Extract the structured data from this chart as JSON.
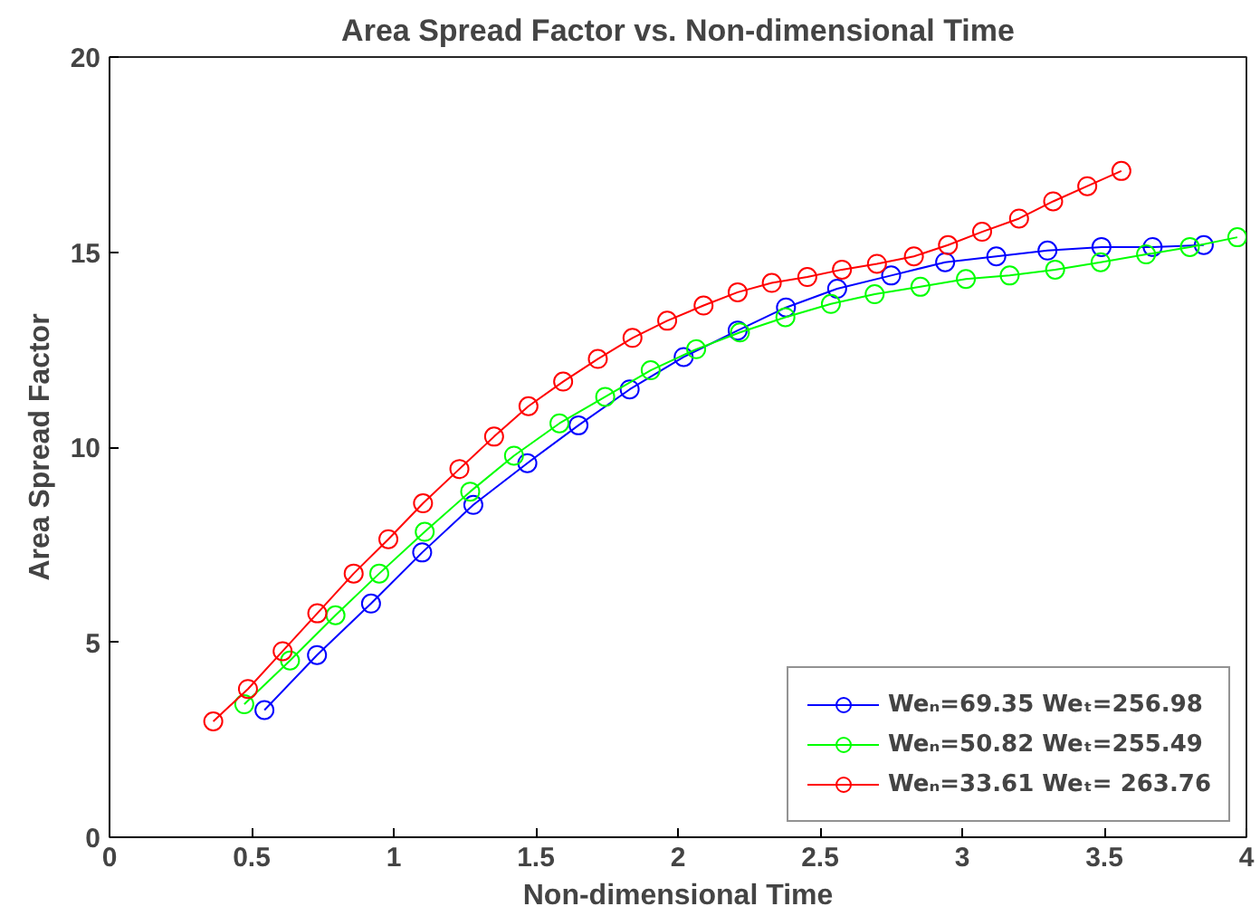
{
  "chart_data": {
    "type": "line",
    "title": "Area Spread Factor vs. Non-dimensional Time",
    "xlabel": "Non-dimensional Time",
    "ylabel": "Area Spread Factor",
    "xlim": [
      0,
      4
    ],
    "ylim": [
      0,
      20
    ],
    "xticks": [
      0,
      0.5,
      1,
      1.5,
      2,
      2.5,
      3,
      3.5,
      4
    ],
    "yticks": [
      0,
      5,
      10,
      15,
      20
    ],
    "grid": false,
    "legend": "bottom right",
    "marker": "circle",
    "line_style": "solid",
    "series": [
      {
        "name": "Weₙ=69.35 Weₜ=256.98",
        "color": "#0000ff",
        "x": [
          0.545,
          0.73,
          0.92,
          1.1,
          1.28,
          1.47,
          1.65,
          1.83,
          2.02,
          2.21,
          2.38,
          2.56,
          2.75,
          2.94,
          3.12,
          3.3,
          3.49,
          3.67,
          3.85
        ],
        "values": [
          3.26,
          4.67,
          5.99,
          7.3,
          8.52,
          9.59,
          10.56,
          11.48,
          12.31,
          12.99,
          13.58,
          14.06,
          14.4,
          14.74,
          14.89,
          15.04,
          15.13,
          15.13,
          15.18
        ]
      },
      {
        "name": "Weₙ=50.82 Weₜ=255.49",
        "color": "#00ff00",
        "x": [
          0.474,
          0.635,
          0.795,
          0.949,
          1.109,
          1.269,
          1.423,
          1.583,
          1.744,
          1.904,
          2.064,
          2.218,
          2.378,
          2.538,
          2.692,
          2.853,
          3.013,
          3.167,
          3.327,
          3.487,
          3.647,
          3.801,
          3.968
        ],
        "values": [
          3.41,
          4.53,
          5.69,
          6.76,
          7.83,
          8.86,
          9.78,
          10.61,
          11.29,
          11.97,
          12.51,
          12.94,
          13.33,
          13.67,
          13.92,
          14.11,
          14.31,
          14.4,
          14.55,
          14.74,
          14.94,
          15.13,
          15.38
        ]
      },
      {
        "name": "Weₙ=33.61 Weₜ= 263.76",
        "color": "#ff0000",
        "x": [
          0.365,
          0.487,
          0.609,
          0.731,
          0.859,
          0.981,
          1.103,
          1.231,
          1.353,
          1.474,
          1.596,
          1.718,
          1.84,
          1.962,
          2.09,
          2.21,
          2.33,
          2.455,
          2.577,
          2.7,
          2.83,
          2.95,
          3.07,
          3.2,
          3.32,
          3.44,
          3.56
        ],
        "values": [
          2.97,
          3.8,
          4.77,
          5.74,
          6.76,
          7.64,
          8.56,
          9.44,
          10.27,
          11.05,
          11.68,
          12.26,
          12.8,
          13.24,
          13.63,
          13.97,
          14.21,
          14.36,
          14.55,
          14.7,
          14.89,
          15.18,
          15.52,
          15.86,
          16.3,
          16.69,
          17.08
        ]
      }
    ]
  }
}
